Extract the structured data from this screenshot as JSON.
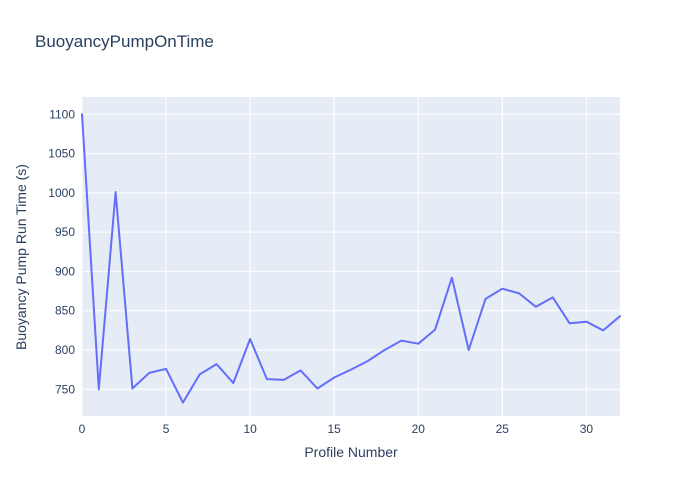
{
  "chart_data": {
    "type": "line",
    "title": "BuoyancyPumpOnTime",
    "xlabel": "Profile Number",
    "ylabel": "Buoyancy Pump Run Time (s)",
    "x": [
      0,
      1,
      2,
      3,
      4,
      5,
      6,
      7,
      8,
      9,
      10,
      11,
      12,
      13,
      14,
      15,
      16,
      17,
      18,
      19,
      20,
      21,
      22,
      23,
      24,
      25,
      26,
      27,
      28,
      29,
      30,
      31,
      32
    ],
    "y": [
      1100,
      750,
      1001,
      751,
      771,
      776,
      733,
      769,
      782,
      758,
      814,
      763,
      762,
      774,
      751,
      765,
      775,
      786,
      800,
      812,
      808,
      826,
      892,
      800,
      865,
      878,
      872,
      855,
      867,
      834,
      836,
      825,
      843
    ],
    "xlim": [
      0,
      32
    ],
    "ylim": [
      716,
      1122
    ],
    "xticks": [
      0,
      5,
      10,
      15,
      20,
      25,
      30
    ],
    "yticks": [
      750,
      800,
      850,
      900,
      950,
      1000,
      1050,
      1100
    ],
    "grid": true,
    "legend": false,
    "style": {
      "line_color": "#636efa",
      "plot_background": "#e5ecf6",
      "grid_color": "#ffffff",
      "text_color": "#2a3f5f",
      "paper_background": "#ffffff",
      "tick_font_size": 12,
      "axis_title_font_size": 14,
      "title_font_size": 17
    }
  }
}
